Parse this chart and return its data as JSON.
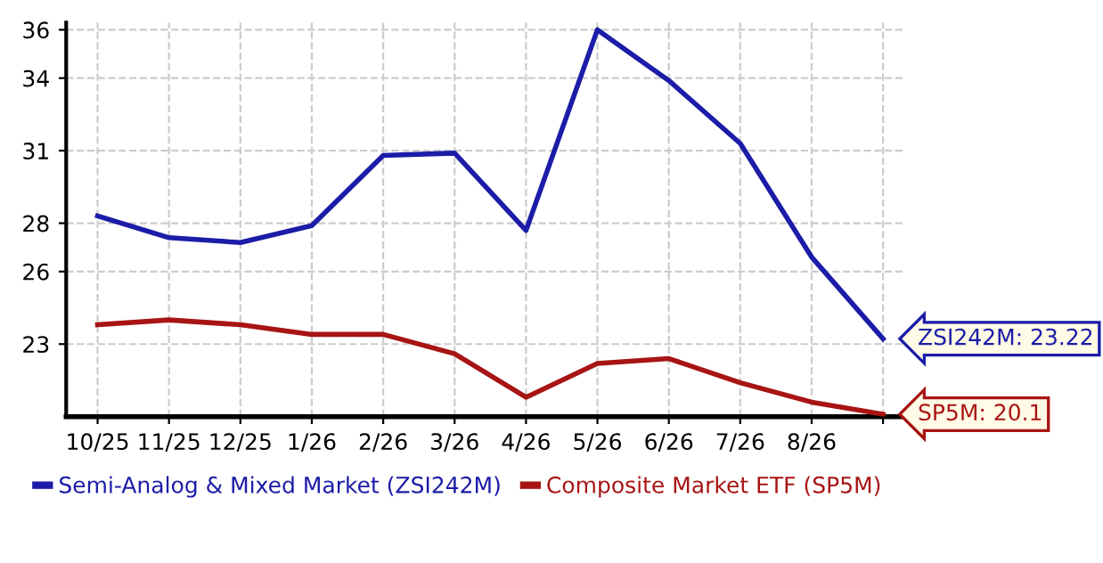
{
  "chart_data": {
    "type": "line",
    "categories": [
      "10/25",
      "11/25",
      "12/25",
      "1/26",
      "2/26",
      "3/26",
      "4/26",
      "5/26",
      "6/26",
      "7/26",
      "8/26",
      null
    ],
    "ylim": [
      20,
      36.3
    ],
    "yticks": [
      23,
      26,
      28,
      31,
      34,
      36
    ],
    "series": [
      {
        "name": "Semi-Analog & Mixed Market (ZSI242M)",
        "color": "#1c1ca8",
        "values": [
          28.3,
          27.4,
          27.2,
          27.9,
          30.8,
          30.9,
          27.7,
          36.0,
          33.9,
          31.3,
          26.6,
          23.22
        ]
      },
      {
        "name": "Composite Market ETF (SP5M)",
        "color": "#a81414",
        "values": [
          23.8,
          24.0,
          23.8,
          23.4,
          23.4,
          22.6,
          20.8,
          22.2,
          22.4,
          21.4,
          20.6,
          20.1
        ]
      }
    ],
    "annotations": [
      "ZSI242M: 23.22",
      "SP5M: 20.1"
    ],
    "grid": true,
    "legend": "bottom",
    "marker": "none",
    "line_style": "solid"
  }
}
